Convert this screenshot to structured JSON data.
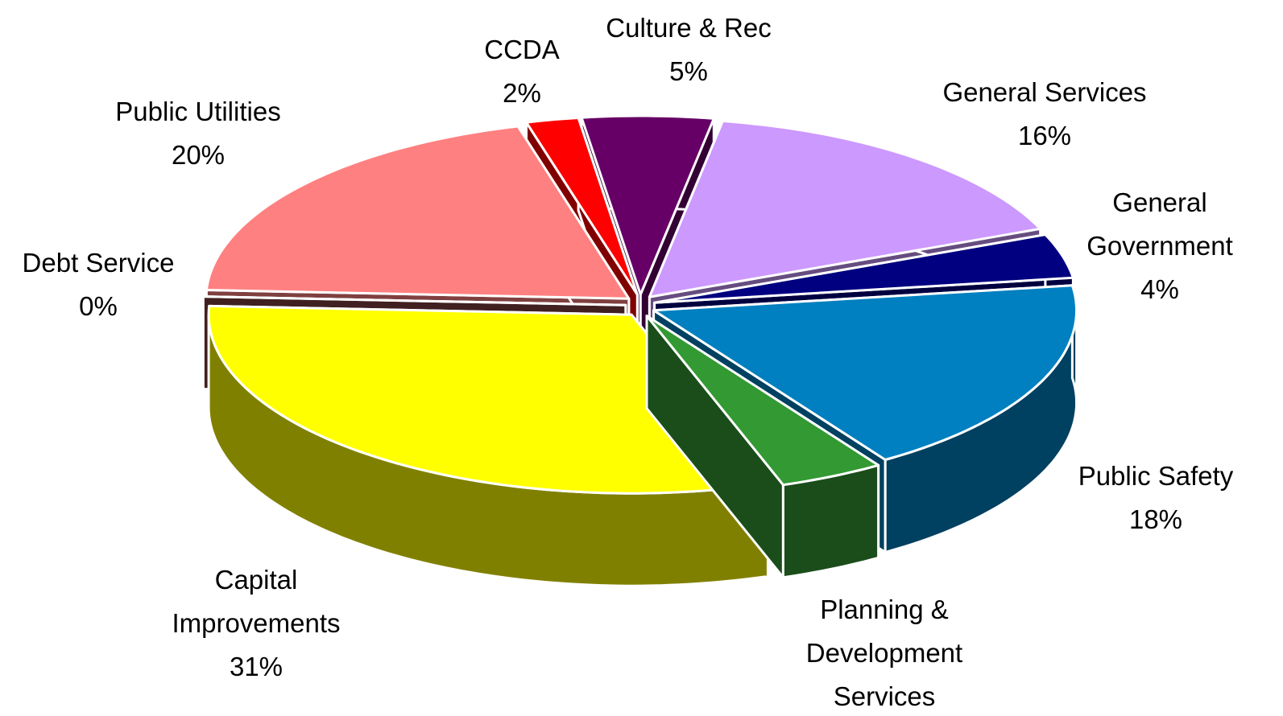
{
  "chart_data": {
    "type": "pie",
    "categories": [
      "Culture & Rec",
      "General Services",
      "General Government",
      "Public Safety",
      "Planning & Development Services",
      "Capital Improvements",
      "Debt Service",
      "Public Utilities",
      "CCDA"
    ],
    "values": [
      5,
      16,
      4,
      18,
      4,
      31,
      0,
      20,
      2
    ],
    "value_labels": [
      "5%",
      "16%",
      "4%",
      "18%",
      null,
      "31%",
      "0%",
      "20%",
      "2%"
    ],
    "colors": [
      "#660066",
      "#cc99ff",
      "#000080",
      "#0080c0",
      "#339933",
      "#ffff00",
      "#804040",
      "#ff8080",
      "#ff0000"
    ]
  }
}
